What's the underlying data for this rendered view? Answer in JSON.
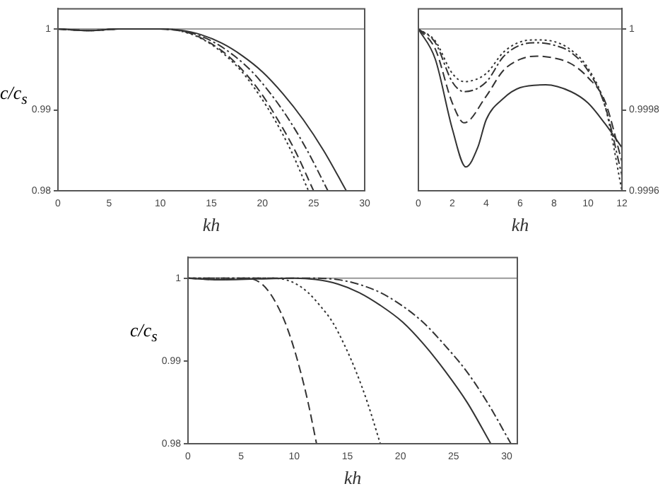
{
  "chart_data": [
    {
      "type": "line",
      "xlabel": "kh",
      "ylabel": "c/c$_{s}$",
      "xlim": [
        0,
        30
      ],
      "xticks": [
        0,
        5,
        10,
        15,
        20,
        25,
        30
      ],
      "ylim": [
        0.98,
        1.0025
      ],
      "yticks": [
        0.98,
        0.99,
        1
      ],
      "grid": false,
      "legend": false,
      "marker": "none",
      "ref_lines": [
        {
          "axis": "y",
          "value": 1,
          "color": "#999999"
        }
      ],
      "series": [
        {
          "color": "#333333",
          "line_style": "solid",
          "x": [
            0,
            2,
            3,
            4,
            5,
            6,
            10,
            12,
            14,
            16,
            18,
            20,
            22,
            24,
            26,
            28.2
          ],
          "values": [
            1,
            0.99985,
            0.9998,
            0.99985,
            0.99995,
            1,
            1,
            0.99984,
            0.99929,
            0.99826,
            0.99672,
            0.9947,
            0.992,
            0.98878,
            0.98494,
            0.98
          ]
        },
        {
          "color": "#333333",
          "line_style": "dashdot",
          "x": [
            0,
            2,
            3,
            4,
            5,
            6,
            10,
            11.8,
            13.6,
            15.4,
            17.2,
            19,
            20.8,
            22.6,
            24.4,
            26.4
          ],
          "values": [
            1,
            0.99985,
            0.9998,
            0.99985,
            0.99995,
            1,
            1,
            0.99984,
            0.99929,
            0.99826,
            0.99672,
            0.9947,
            0.992,
            0.98878,
            0.98494,
            0.98
          ]
        },
        {
          "color": "#333333",
          "line_style": "dashed",
          "x": [
            0,
            2,
            3,
            4,
            5,
            6,
            10,
            11.65,
            13.3,
            14.9,
            16.6,
            18.2,
            19.9,
            21.5,
            23.2,
            25
          ],
          "values": [
            1,
            0.99985,
            0.9998,
            0.99985,
            0.99995,
            1,
            1,
            0.99984,
            0.99929,
            0.99826,
            0.99672,
            0.9947,
            0.992,
            0.98878,
            0.98494,
            0.98
          ]
        },
        {
          "color": "#333333",
          "line_style": "dotted",
          "x": [
            0,
            2,
            3,
            4,
            5,
            6,
            10,
            11.6,
            13.2,
            14.8,
            16.4,
            18,
            19.6,
            21.2,
            22.8,
            24.5
          ],
          "values": [
            1,
            0.99985,
            0.9998,
            0.99985,
            0.99995,
            1,
            1,
            0.99984,
            0.99929,
            0.99826,
            0.99672,
            0.9947,
            0.992,
            0.98878,
            0.98494,
            0.98
          ]
        }
      ]
    },
    {
      "type": "line",
      "xlabel": "kh",
      "xlim": [
        0,
        12
      ],
      "xticks": [
        0,
        2,
        4,
        6,
        8,
        10,
        12
      ],
      "ylim": [
        0.9996,
        1.00005
      ],
      "yticks": [
        0.9996,
        0.9998,
        1
      ],
      "grid": false,
      "legend": false,
      "marker": "none",
      "ref_lines": [
        {
          "axis": "y",
          "value": 1,
          "color": "#999999"
        }
      ],
      "series": [
        {
          "color": "#333333",
          "line_style": "solid",
          "x": [
            0,
            1,
            2,
            2.8,
            3.5,
            4,
            5,
            6,
            7.5,
            9,
            10,
            11,
            12
          ],
          "values": [
            1,
            0.999925,
            0.999753,
            0.999659,
            0.999707,
            0.999776,
            0.999828,
            0.999855,
            0.999862,
            0.999845,
            0.999817,
            0.999766,
            0.999707
          ]
        },
        {
          "color": "#333333",
          "line_style": "dashed",
          "x": [
            0,
            1,
            2,
            2.7,
            4,
            5,
            6,
            7,
            8,
            9,
            10,
            11,
            12
          ],
          "values": [
            1,
            0.99995,
            0.999817,
            0.999768,
            0.999834,
            0.999897,
            0.999925,
            0.999933,
            0.999928,
            0.999914,
            0.99988,
            0.999821,
            0.999672
          ]
        },
        {
          "color": "#333333",
          "line_style": "dashdot",
          "x": [
            0,
            1,
            2,
            2.7,
            4,
            5,
            6,
            7,
            8,
            9,
            10,
            11,
            12
          ],
          "values": [
            1,
            0.999966,
            0.999869,
            0.999845,
            0.999869,
            0.999931,
            0.99996,
            0.999966,
            0.99996,
            0.999942,
            0.999897,
            0.99981,
            0.999638
          ]
        },
        {
          "color": "#333333",
          "line_style": "dotted",
          "x": [
            0,
            1,
            2,
            2.7,
            4,
            5,
            6,
            7,
            8,
            9,
            10,
            11,
            12
          ],
          "values": [
            1,
            0.99997,
            0.99989,
            0.99987,
            0.99989,
            0.999942,
            0.999968,
            0.999973,
            0.999969,
            0.999948,
            0.999903,
            0.99981,
            0.9996
          ]
        }
      ]
    },
    {
      "type": "line",
      "xlabel": "kh",
      "ylabel": "c/c$_{s}$",
      "xlim": [
        0,
        31
      ],
      "xticks": [
        0,
        5,
        10,
        15,
        20,
        25,
        30
      ],
      "ylim": [
        0.98,
        1.0025
      ],
      "yticks": [
        0.98,
        0.99,
        1
      ],
      "grid": false,
      "legend": false,
      "marker": "none",
      "ref_lines": [
        {
          "axis": "y",
          "value": 1,
          "color": "#999999"
        }
      ],
      "series": [
        {
          "color": "#333333",
          "line_style": "solid",
          "x": [
            0,
            3,
            10,
            12,
            14.1,
            16.1,
            18.1,
            20.2,
            22.2,
            24.2,
            26.3,
            28.5
          ],
          "values": [
            1,
            0.9998,
            1,
            0.99984,
            0.99929,
            0.99826,
            0.99672,
            0.9947,
            0.992,
            0.98878,
            0.98494,
            0.98
          ]
        },
        {
          "color": "#333333",
          "line_style": "dashdot",
          "x": [
            0,
            3,
            12,
            14,
            16,
            18.1,
            20.1,
            22.1,
            24.1,
            26.2,
            28.2,
            30.4
          ],
          "values": [
            1,
            1,
            1,
            0.99984,
            0.99929,
            0.99826,
            0.99672,
            0.9947,
            0.992,
            0.98878,
            0.98494,
            0.98
          ]
        },
        {
          "color": "#333333",
          "line_style": "dashed",
          "x": [
            0,
            3,
            5.5,
            6.23,
            6.95,
            7.68,
            8.4,
            9.13,
            9.86,
            10.58,
            11.31,
            12.1
          ],
          "values": [
            1,
            0.9998,
            1,
            0.99984,
            0.99929,
            0.99826,
            0.99672,
            0.9947,
            0.992,
            0.98878,
            0.98494,
            0.98
          ]
        },
        {
          "color": "#333333",
          "line_style": "dotted",
          "x": [
            0,
            3,
            8,
            9.1,
            10.2,
            11.3,
            12.4,
            13.6,
            14.7,
            15.8,
            16.9,
            18.1
          ],
          "values": [
            1,
            1,
            1,
            0.99984,
            0.99929,
            0.99826,
            0.99672,
            0.9947,
            0.992,
            0.98878,
            0.98494,
            0.98
          ]
        }
      ]
    }
  ]
}
